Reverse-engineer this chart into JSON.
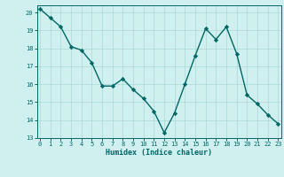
{
  "x": [
    0,
    1,
    2,
    3,
    4,
    5,
    6,
    7,
    8,
    9,
    10,
    11,
    12,
    13,
    14,
    15,
    16,
    17,
    18,
    19,
    20,
    21,
    22,
    23
  ],
  "y": [
    20.2,
    19.7,
    19.2,
    18.1,
    17.9,
    17.2,
    15.9,
    15.9,
    16.3,
    15.7,
    15.2,
    14.5,
    13.3,
    14.4,
    16.0,
    17.6,
    19.1,
    18.5,
    19.2,
    17.7,
    15.4,
    14.9,
    14.3,
    13.8
  ],
  "xlabel": "Humidex (Indice chaleur)",
  "ylim": [
    13,
    20.4
  ],
  "xlim": [
    -0.3,
    23.3
  ],
  "yticks": [
    13,
    14,
    15,
    16,
    17,
    18,
    19,
    20
  ],
  "xticks": [
    0,
    1,
    2,
    3,
    4,
    5,
    6,
    7,
    8,
    9,
    10,
    11,
    12,
    13,
    14,
    15,
    16,
    17,
    18,
    19,
    20,
    21,
    22,
    23
  ],
  "line_color": "#006666",
  "marker_color": "#006666",
  "bg_color": "#cff0ee",
  "grid_color": "#aad8d5",
  "axis_color": "#006666",
  "label_color": "#006666",
  "tick_label_color": "#006666",
  "tick_fontsize": 5.0,
  "xlabel_fontsize": 6.0,
  "linewidth": 1.0,
  "markersize": 2.2
}
